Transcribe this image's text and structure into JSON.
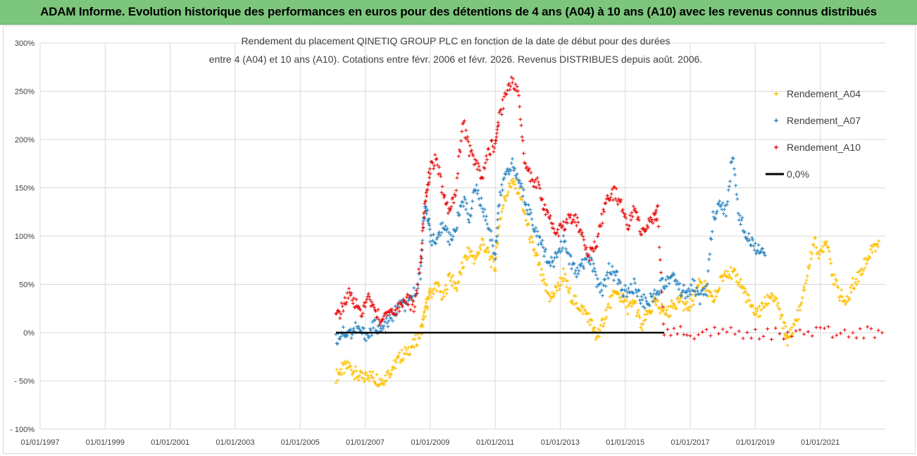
{
  "header": {
    "title": "ADAM Informe. Evolution historique des performances en euros pour des détentions de 4 ans (A04) à 10 ans (A10) avec les revenus connus distribués"
  },
  "chart_data": {
    "type": "scatter",
    "title_lines": [
      "Rendement du placement QINETIQ GROUP PLC en fonction de la date de début pour des durées",
      "entre 4 (A04) et 10 ans (A10).  Cotations entre févr. 2006 et févr. 2026. Revenus DISTRIBUES depuis août. 2006."
    ],
    "x_tick_labels": [
      "01/01/1997",
      "01/01/1999",
      "01/01/2001",
      "01/01/2003",
      "01/01/2005",
      "01/01/2007",
      "01/01/2009",
      "01/01/2011",
      "01/01/2013",
      "01/01/2015",
      "01/01/2017",
      "01/01/2019",
      "01/01/2021"
    ],
    "y_tick_labels": [
      "300%",
      "250%",
      "200%",
      "150%",
      "100%",
      "50%",
      "0%",
      "- 50%",
      "- 100%"
    ],
    "ylim": [
      -100,
      300
    ],
    "xlim": [
      1997.0,
      2023.0
    ],
    "grid": true,
    "legend_position": "top-right",
    "series": [
      {
        "name": "Rendement_A04",
        "color": "#ffc000",
        "marker": "+",
        "points": [
          [
            2006.1,
            -45
          ],
          [
            2006.3,
            -38
          ],
          [
            2006.5,
            -35
          ],
          [
            2006.7,
            -42
          ],
          [
            2006.9,
            -48
          ],
          [
            2007.1,
            -44
          ],
          [
            2007.3,
            -47
          ],
          [
            2007.5,
            -50
          ],
          [
            2007.7,
            -43
          ],
          [
            2007.9,
            -33
          ],
          [
            2008.1,
            -25
          ],
          [
            2008.3,
            -18
          ],
          [
            2008.5,
            -12
          ],
          [
            2008.7,
            0
          ],
          [
            2008.8,
            15
          ],
          [
            2008.9,
            30
          ],
          [
            2009.0,
            40
          ],
          [
            2009.2,
            50
          ],
          [
            2009.4,
            35
          ],
          [
            2009.6,
            60
          ],
          [
            2009.8,
            45
          ],
          [
            2010.0,
            70
          ],
          [
            2010.2,
            85
          ],
          [
            2010.4,
            75
          ],
          [
            2010.6,
            95
          ],
          [
            2010.8,
            80
          ],
          [
            2011.0,
            65
          ],
          [
            2011.1,
            110
          ],
          [
            2011.3,
            140
          ],
          [
            2011.5,
            155
          ],
          [
            2011.7,
            150
          ],
          [
            2011.9,
            125
          ],
          [
            2012.1,
            95
          ],
          [
            2012.3,
            75
          ],
          [
            2012.5,
            50
          ],
          [
            2012.7,
            35
          ],
          [
            2012.9,
            45
          ],
          [
            2013.1,
            60
          ],
          [
            2013.3,
            40
          ],
          [
            2013.5,
            30
          ],
          [
            2013.7,
            25
          ],
          [
            2013.9,
            15
          ],
          [
            2014.1,
            -5
          ],
          [
            2014.3,
            10
          ],
          [
            2014.5,
            30
          ],
          [
            2014.7,
            40
          ],
          [
            2014.9,
            35
          ],
          [
            2015.1,
            25
          ],
          [
            2015.3,
            30
          ],
          [
            2015.5,
            5
          ],
          [
            2015.7,
            20
          ],
          [
            2015.9,
            30
          ],
          [
            2016.1,
            25
          ],
          [
            2016.3,
            20
          ],
          [
            2016.5,
            30
          ],
          [
            2016.7,
            35
          ],
          [
            2016.9,
            25
          ],
          [
            2017.1,
            35
          ],
          [
            2017.3,
            55
          ],
          [
            2017.5,
            45
          ],
          [
            2017.7,
            30
          ],
          [
            2017.9,
            50
          ],
          [
            2018.1,
            65
          ],
          [
            2018.3,
            60
          ],
          [
            2018.5,
            55
          ],
          [
            2018.7,
            40
          ],
          [
            2018.9,
            25
          ],
          [
            2019.1,
            20
          ],
          [
            2019.3,
            30
          ],
          [
            2019.5,
            40
          ],
          [
            2019.7,
            25
          ],
          [
            2019.9,
            5
          ],
          [
            2020.0,
            -8
          ],
          [
            2020.2,
            10
          ],
          [
            2020.4,
            25
          ],
          [
            2020.6,
            60
          ],
          [
            2020.8,
            95
          ],
          [
            2021.0,
            80
          ],
          [
            2021.2,
            100
          ],
          [
            2021.4,
            55
          ],
          [
            2021.6,
            40
          ],
          [
            2021.8,
            30
          ],
          [
            2022.0,
            50
          ],
          [
            2022.2,
            60
          ],
          [
            2022.4,
            75
          ],
          [
            2022.6,
            85
          ],
          [
            2022.8,
            95
          ]
        ]
      },
      {
        "name": "Rendement_A07",
        "color": "#2e86c1",
        "marker": "+",
        "points": [
          [
            2006.1,
            -8
          ],
          [
            2006.3,
            2
          ],
          [
            2006.5,
            -2
          ],
          [
            2006.7,
            5
          ],
          [
            2006.9,
            0
          ],
          [
            2007.1,
            -2
          ],
          [
            2007.3,
            8
          ],
          [
            2007.5,
            2
          ],
          [
            2007.7,
            10
          ],
          [
            2007.9,
            20
          ],
          [
            2008.1,
            30
          ],
          [
            2008.3,
            25
          ],
          [
            2008.5,
            40
          ],
          [
            2008.7,
            60
          ],
          [
            2008.8,
            120
          ],
          [
            2008.9,
            130
          ],
          [
            2009.0,
            100
          ],
          [
            2009.2,
            90
          ],
          [
            2009.4,
            115
          ],
          [
            2009.6,
            95
          ],
          [
            2009.8,
            110
          ],
          [
            2010.0,
            140
          ],
          [
            2010.2,
            120
          ],
          [
            2010.4,
            150
          ],
          [
            2010.6,
            130
          ],
          [
            2010.8,
            110
          ],
          [
            2011.0,
            80
          ],
          [
            2011.1,
            130
          ],
          [
            2011.3,
            165
          ],
          [
            2011.5,
            175
          ],
          [
            2011.7,
            160
          ],
          [
            2011.9,
            140
          ],
          [
            2012.1,
            120
          ],
          [
            2012.3,
            100
          ],
          [
            2012.5,
            85
          ],
          [
            2012.7,
            70
          ],
          [
            2012.9,
            80
          ],
          [
            2013.1,
            95
          ],
          [
            2013.3,
            75
          ],
          [
            2013.5,
            60
          ],
          [
            2013.7,
            70
          ],
          [
            2013.9,
            80
          ],
          [
            2014.1,
            55
          ],
          [
            2014.3,
            45
          ],
          [
            2014.5,
            65
          ],
          [
            2014.7,
            60
          ],
          [
            2014.9,
            45
          ],
          [
            2015.1,
            40
          ],
          [
            2015.3,
            50
          ],
          [
            2015.5,
            35
          ],
          [
            2015.7,
            30
          ],
          [
            2015.9,
            40
          ],
          [
            2016.1,
            50
          ],
          [
            2016.3,
            55
          ],
          [
            2016.5,
            60
          ],
          [
            2016.7,
            45
          ],
          [
            2016.9,
            40
          ],
          [
            2017.1,
            50
          ],
          [
            2017.3,
            35
          ],
          [
            2017.5,
            45
          ],
          [
            2017.7,
            120
          ],
          [
            2017.9,
            130
          ],
          [
            2018.1,
            125
          ],
          [
            2018.3,
            185
          ],
          [
            2018.5,
            120
          ],
          [
            2018.7,
            105
          ],
          [
            2018.9,
            95
          ],
          [
            2019.1,
            85
          ],
          [
            2019.3,
            80
          ]
        ]
      },
      {
        "name": "Rendement_A10",
        "color": "#e81010",
        "marker": "+",
        "points": [
          [
            2006.1,
            15
          ],
          [
            2006.3,
            25
          ],
          [
            2006.5,
            40
          ],
          [
            2006.7,
            30
          ],
          [
            2006.9,
            20
          ],
          [
            2007.1,
            35
          ],
          [
            2007.3,
            25
          ],
          [
            2007.5,
            10
          ],
          [
            2007.7,
            25
          ],
          [
            2007.9,
            20
          ],
          [
            2008.1,
            30
          ],
          [
            2008.3,
            35
          ],
          [
            2008.5,
            25
          ],
          [
            2008.7,
            70
          ],
          [
            2008.8,
            120
          ],
          [
            2008.9,
            150
          ],
          [
            2009.0,
            170
          ],
          [
            2009.2,
            180
          ],
          [
            2009.4,
            140
          ],
          [
            2009.6,
            125
          ],
          [
            2009.8,
            150
          ],
          [
            2010.0,
            220
          ],
          [
            2010.2,
            190
          ],
          [
            2010.4,
            175
          ],
          [
            2010.6,
            160
          ],
          [
            2010.8,
            190
          ],
          [
            2011.0,
            195
          ],
          [
            2011.1,
            220
          ],
          [
            2011.3,
            245
          ],
          [
            2011.5,
            260
          ],
          [
            2011.7,
            250
          ],
          [
            2011.9,
            180
          ],
          [
            2012.1,
            160
          ],
          [
            2012.3,
            155
          ],
          [
            2012.5,
            130
          ],
          [
            2012.7,
            115
          ],
          [
            2012.9,
            105
          ],
          [
            2013.1,
            110
          ],
          [
            2013.3,
            120
          ],
          [
            2013.5,
            115
          ],
          [
            2013.7,
            100
          ],
          [
            2013.9,
            80
          ],
          [
            2014.1,
            90
          ],
          [
            2014.3,
            120
          ],
          [
            2014.5,
            140
          ],
          [
            2014.7,
            145
          ],
          [
            2014.9,
            130
          ],
          [
            2015.1,
            110
          ],
          [
            2015.3,
            135
          ],
          [
            2015.5,
            100
          ],
          [
            2015.7,
            110
          ],
          [
            2015.9,
            120
          ],
          [
            2016.0,
            125
          ],
          [
            2016.2,
            0
          ],
          [
            2017.0,
            0
          ],
          [
            2018.0,
            0
          ],
          [
            2019.0,
            0
          ],
          [
            2020.0,
            0
          ],
          [
            2021.0,
            0
          ],
          [
            2022.0,
            0
          ],
          [
            2022.9,
            0
          ]
        ]
      },
      {
        "name": "0,0%",
        "color": "#000000",
        "marker": "line",
        "points": [
          [
            2006.1,
            0
          ],
          [
            2016.2,
            0
          ]
        ]
      }
    ]
  }
}
